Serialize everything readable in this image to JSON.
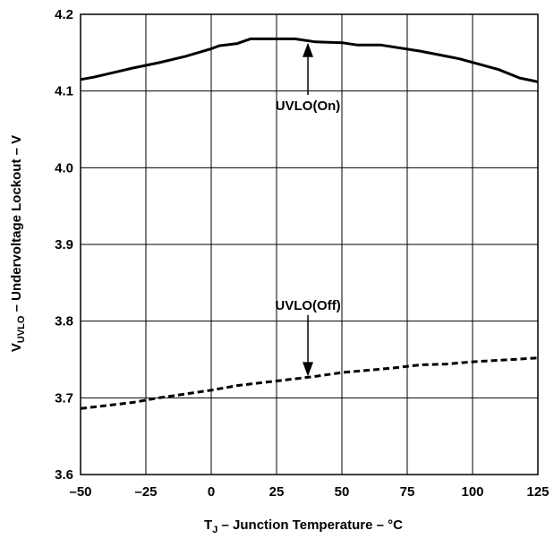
{
  "chart_data": {
    "type": "line",
    "xlabel": {
      "main": "T",
      "sub": "J",
      "rest": " – Junction Temperature – °C"
    },
    "ylabel": {
      "main": "V",
      "sub": "UVLO",
      "rest": " – Undervoltage Lockout – V"
    },
    "xlim": [
      -50,
      125
    ],
    "ylim": [
      3.6,
      4.2
    ],
    "xticks": [
      "–50",
      "–25",
      "0",
      "25",
      "50",
      "75",
      "100",
      "125"
    ],
    "xtick_values": [
      -50,
      -25,
      0,
      25,
      50,
      75,
      100,
      125
    ],
    "yticks": [
      "3.6",
      "3.7",
      "3.8",
      "3.9",
      "4.0",
      "4.1",
      "4.2"
    ],
    "ytick_values": [
      3.6,
      3.7,
      3.8,
      3.9,
      4.0,
      4.1,
      4.2
    ],
    "grid": true,
    "series": [
      {
        "name": "UVLO(On)",
        "style": "solid",
        "x": [
          -50,
          -45,
          -40,
          -30,
          -20,
          -10,
          -3,
          0,
          3,
          10,
          15,
          25,
          32,
          40,
          50,
          56,
          65,
          80,
          95,
          110,
          118,
          125
        ],
        "y": [
          4.115,
          4.118,
          4.122,
          4.13,
          4.137,
          4.145,
          4.152,
          4.155,
          4.159,
          4.162,
          4.168,
          4.168,
          4.168,
          4.164,
          4.163,
          4.16,
          4.16,
          4.152,
          4.142,
          4.128,
          4.117,
          4.112
        ]
      },
      {
        "name": "UVLO(Off)",
        "style": "dashed",
        "x": [
          -50,
          -40,
          -30,
          -20,
          -10,
          0,
          10,
          20,
          30,
          40,
          50,
          60,
          70,
          80,
          90,
          100,
          110,
          125
        ],
        "y": [
          3.686,
          3.69,
          3.694,
          3.7,
          3.705,
          3.71,
          3.716,
          3.72,
          3.724,
          3.728,
          3.733,
          3.736,
          3.739,
          3.743,
          3.744,
          3.747,
          3.749,
          3.752
        ]
      }
    ],
    "annotations": [
      {
        "text": "UVLO(On)",
        "x": 37,
        "y": 4.075,
        "arrow_to_x": 37,
        "arrow_to_y": 4.163
      },
      {
        "text": "UVLO(Off)",
        "x": 37,
        "y": 3.815,
        "arrow_to_x": 37,
        "arrow_to_y": 3.728
      }
    ]
  }
}
